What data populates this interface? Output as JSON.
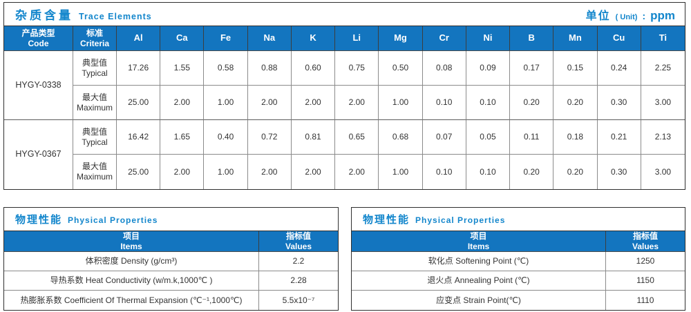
{
  "colors": {
    "accent_blue": "#1375BF",
    "title_blue": "#1386CC",
    "border_dark": "#2E2E2E",
    "border_light": "#8A8A8A",
    "text_dark": "#333333"
  },
  "trace": {
    "title_zh": "杂质含量",
    "title_en": "Trace Elements",
    "unit_zh": "单位",
    "unit_paren": "( Unit)",
    "unit_colon": ":",
    "unit_value": "ppm",
    "header": {
      "product_zh": "产品类型",
      "product_en": "Code",
      "criteria_zh": "标准",
      "criteria_en": "Criteria"
    },
    "elements": [
      "Al",
      "Ca",
      "Fe",
      "Na",
      "K",
      "Li",
      "Mg",
      "Cr",
      "Ni",
      "B",
      "Mn",
      "Cu",
      "Ti"
    ],
    "labels": {
      "typical_zh": "典型值",
      "typical_en": "Typical",
      "maximum_zh": "最大值",
      "maximum_en": "Maximum"
    },
    "products": [
      {
        "code": "HYGY-0338",
        "typical": [
          "17.26",
          "1.55",
          "0.58",
          "0.88",
          "0.60",
          "0.75",
          "0.50",
          "0.08",
          "0.09",
          "0.17",
          "0.15",
          "0.24",
          "2.25"
        ],
        "maximum": [
          "25.00",
          "2.00",
          "1.00",
          "2.00",
          "2.00",
          "2.00",
          "1.00",
          "0.10",
          "0.10",
          "0.20",
          "0.20",
          "0.30",
          "3.00"
        ]
      },
      {
        "code": "HYGY-0367",
        "typical": [
          "16.42",
          "1.65",
          "0.40",
          "0.72",
          "0.81",
          "0.65",
          "0.68",
          "0.07",
          "0.05",
          "0.11",
          "0.18",
          "0.21",
          "2.13"
        ],
        "maximum": [
          "25.00",
          "2.00",
          "1.00",
          "2.00",
          "2.00",
          "2.00",
          "1.00",
          "0.10",
          "0.10",
          "0.20",
          "0.20",
          "0.30",
          "3.00"
        ]
      }
    ]
  },
  "physical_left": {
    "title_zh": "物理性能",
    "title_en": "Physical Properties",
    "header": {
      "items_zh": "项目",
      "items_en": "Items",
      "values_zh": "指标值",
      "values_en": "Values"
    },
    "rows": [
      {
        "item": "体积密度 Density (g/cm³)",
        "value": "2.2"
      },
      {
        "item": "导热系数 Heat Conductivity (w/m.k,1000℃ )",
        "value": "2.28"
      },
      {
        "item": "热膨胀系数 Coefficient Of Thermal Expansion (℃⁻¹,1000℃)",
        "value": "5.5x10⁻⁷"
      }
    ]
  },
  "physical_right": {
    "title_zh": "物理性能",
    "title_en": "Physical Properties",
    "header": {
      "items_zh": "项目",
      "items_en": "Items",
      "values_zh": "指标值",
      "values_en": "Values"
    },
    "rows": [
      {
        "item": "软化点 Softening Point (℃)",
        "value": "1250"
      },
      {
        "item": "退火点 Annealing Point (℃)",
        "value": "1150"
      },
      {
        "item": "应变点 Strain Point(℃)",
        "value": "1110"
      }
    ]
  }
}
